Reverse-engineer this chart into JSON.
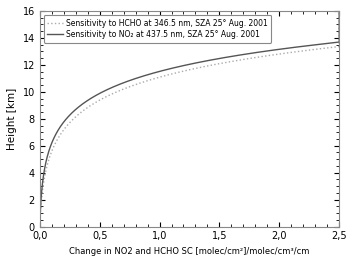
{
  "xlabel": "Change in NO2 and HCHO SC [molec/cm²]/molec/cm³/cm",
  "ylabel": "Height [km]",
  "xlim": [
    0.0,
    2.5
  ],
  "ylim": [
    0,
    16
  ],
  "xticks": [
    0.0,
    0.5,
    1.0,
    1.5,
    2.0,
    2.5
  ],
  "xtick_labels": [
    "0,0",
    "0,5",
    "1,0",
    "1,5",
    "2,0",
    "2,5"
  ],
  "yticks": [
    0,
    2,
    4,
    6,
    8,
    10,
    12,
    14,
    16
  ],
  "legend_hcho": "Sensitivity to HCHO at 346.5 nm, SZA 25° Aug. 2001",
  "legend_no2": "Sensitivity to NO₂ at 437.5 nm, SZA 25° Aug. 2001",
  "no2_color": "#555555",
  "hcho_color": "#aaaaaa",
  "background_color": "#ffffff",
  "legend_line_color": "#888888",
  "no2_scale": 0.38,
  "hcho_scale": 0.28,
  "no2_exp": 0.32,
  "hcho_exp": 0.28
}
